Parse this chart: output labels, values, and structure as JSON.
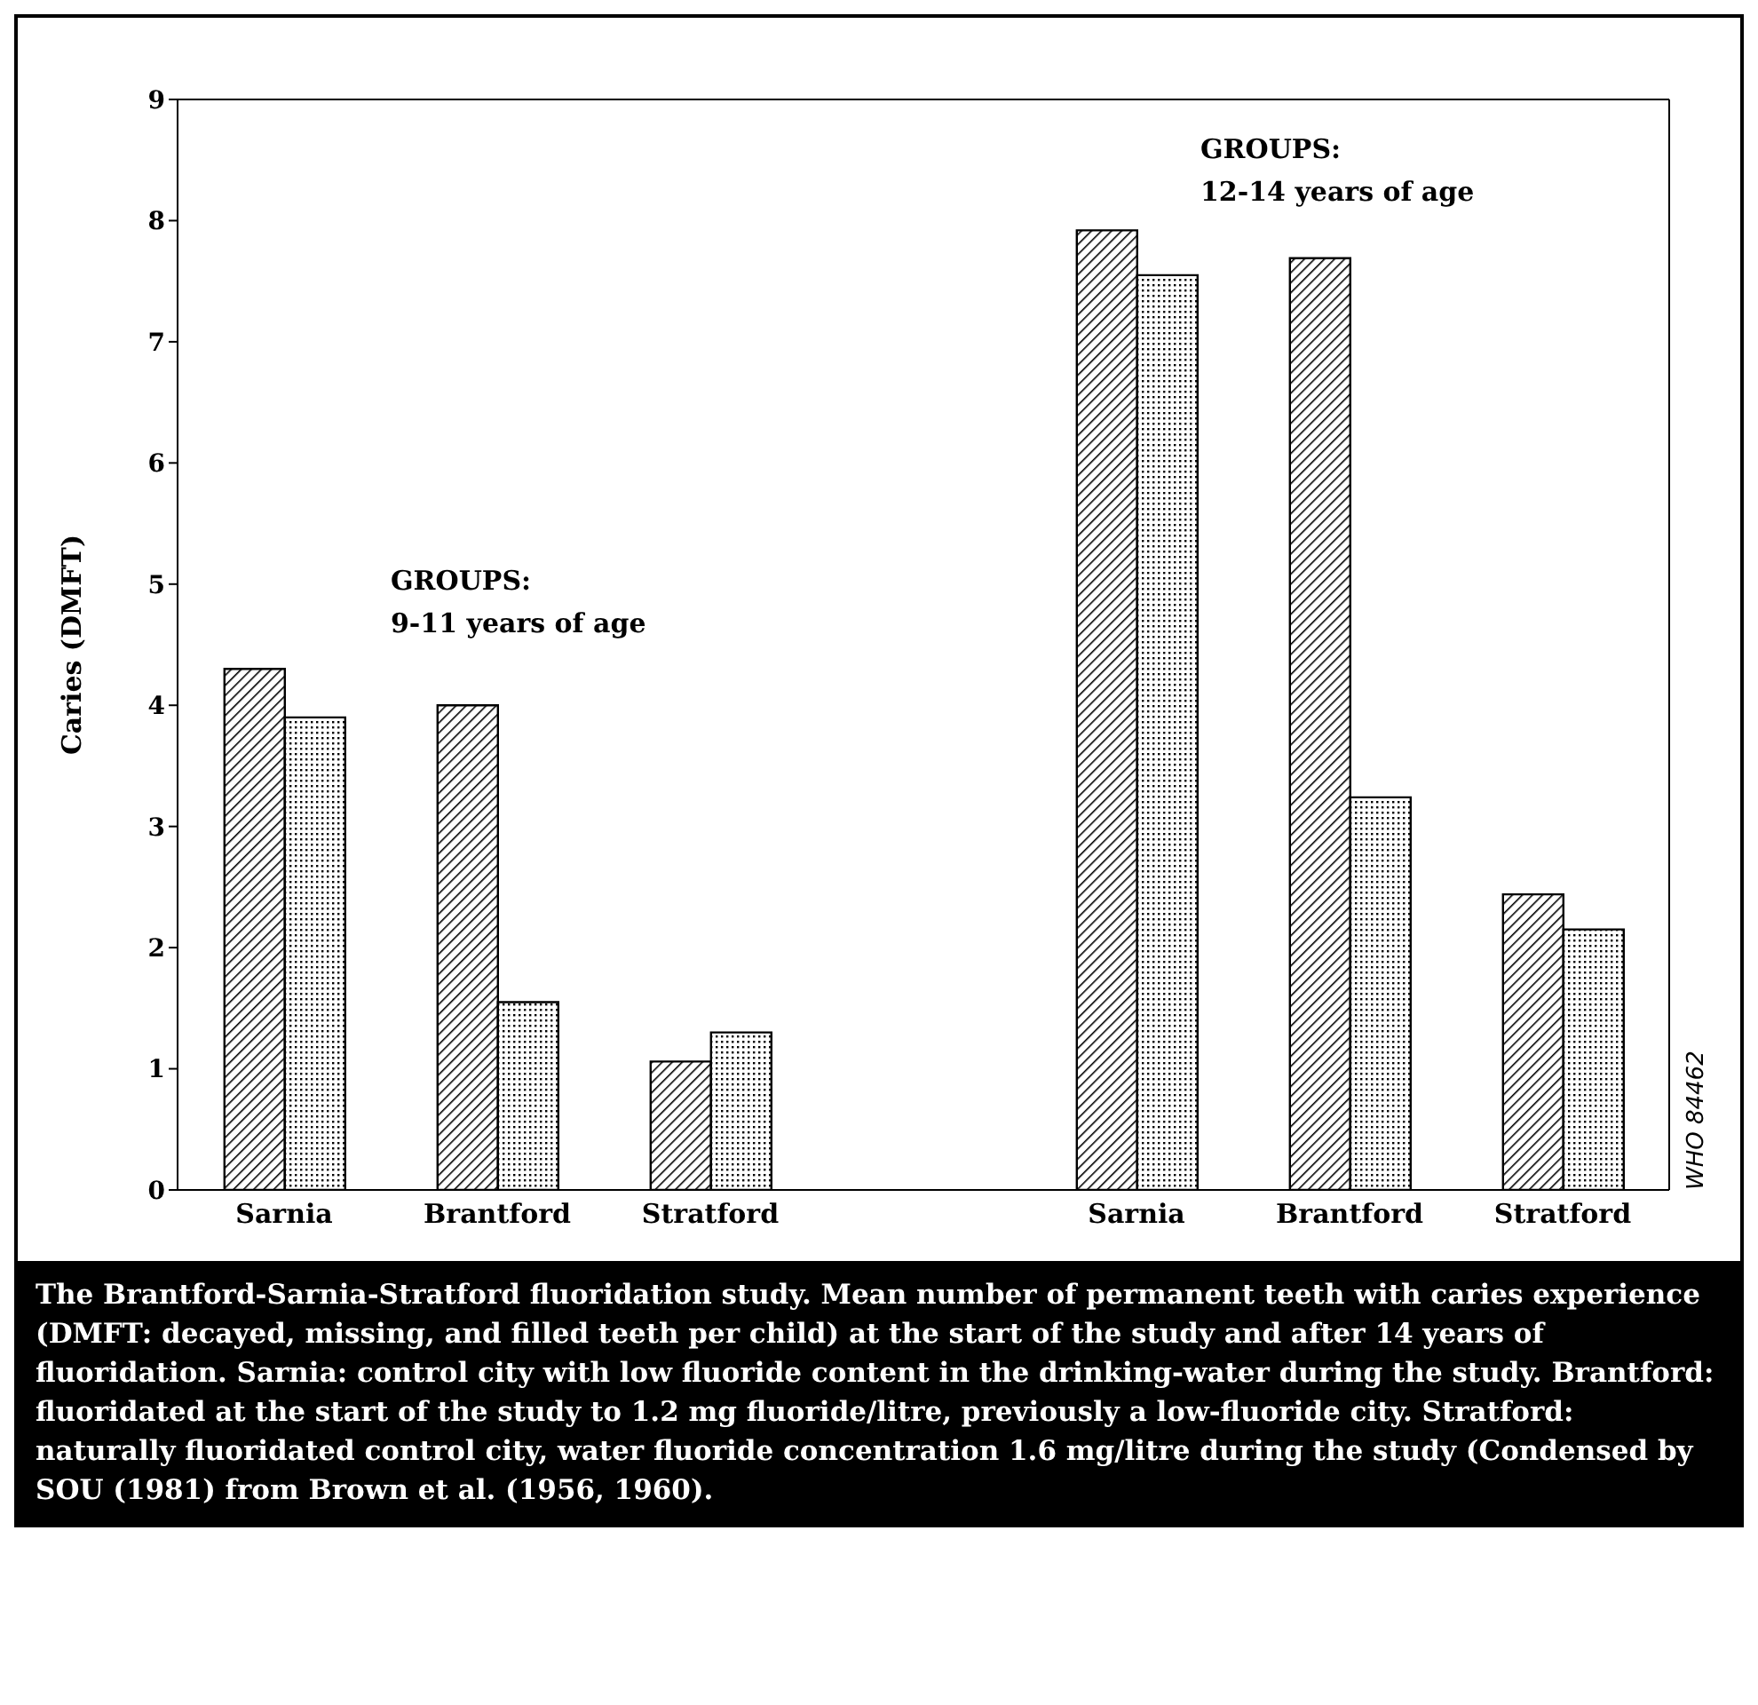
{
  "chart_data": {
    "type": "bar",
    "ylabel": "Caries (DMFT)",
    "categories": [
      "Sarnia",
      "Brantford",
      "Stratford",
      null,
      "Sarnia",
      "Brantford",
      "Stratford"
    ],
    "series": [
      {
        "color": "#000000",
        "values": [
          4.3,
          4.0,
          1.06,
          null,
          7.92,
          7.69,
          2.44
        ]
      },
      {
        "color": "#000000",
        "values": [
          3.9,
          1.55,
          1.3,
          null,
          7.55,
          3.24,
          2.15
        ]
      }
    ],
    "ylim": [
      0,
      9
    ],
    "yticks": [
      0,
      1,
      2,
      3,
      4,
      5,
      6,
      7,
      8,
      9
    ],
    "grid": false,
    "legend": false,
    "annotations": [
      "GROUPS:\n9-11 years of age",
      "GROUPS:\n12-14 years of age",
      "WHO 84462",
      "The Brantford-Sarnia-Stratford fluoridation study.  Mean number of permanent teeth with caries experience (DMFT: decayed, missing, and filled teeth per child) at the start of the study and after 14 years of fluoridation. Sarnia: control city with low fluoride content in the drinking-water during the study.  Brantford: fluoridated at the start of the study to 1.2 mg fluoride/litre, previously a low-fluoride city.  Stratford: naturally fluoridated control city, water fluoride concentration 1.6 mg/litre during the study (Condensed by SOU (1981) from Brown et al. (1956, 1960)."
    ]
  }
}
